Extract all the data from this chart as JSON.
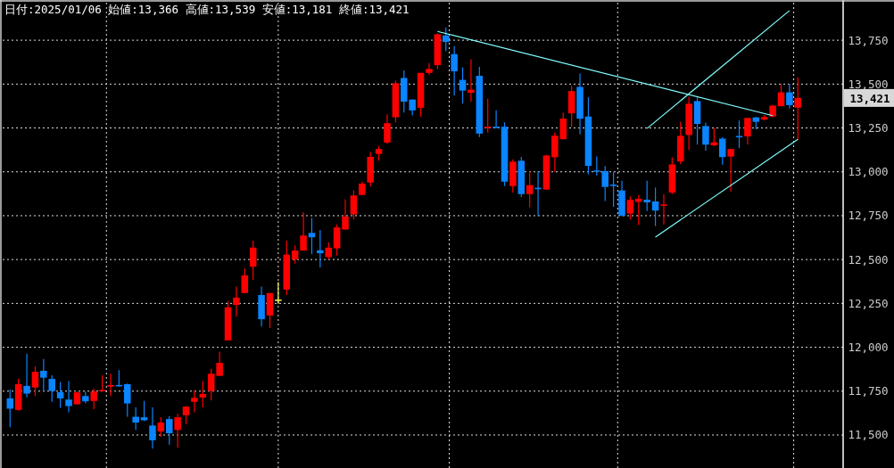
{
  "chart_data": {
    "type": "candlestick",
    "title": "日付:2025/01/06 始値:13,366 高値:13,539 安値:13,181 終値:13,421",
    "categories": [
      null,
      null,
      null,
      null,
      null,
      null,
      null,
      null,
      null,
      null,
      null,
      null,
      null,
      null,
      null,
      null,
      null,
      null,
      null,
      null,
      null,
      null,
      null,
      null,
      null,
      null,
      null,
      null,
      null,
      null,
      null,
      null,
      null,
      null,
      null,
      null,
      null,
      null,
      null,
      null,
      null,
      null,
      null,
      null,
      null,
      null,
      null,
      null,
      null,
      null,
      null,
      null,
      null,
      null,
      null,
      null,
      null,
      null,
      null,
      null,
      null,
      null,
      null,
      null,
      null,
      null,
      null,
      null,
      null,
      null,
      null,
      null,
      null,
      null,
      null,
      null,
      null,
      null,
      null,
      null,
      null,
      null,
      null,
      null,
      null,
      null,
      null,
      null,
      null,
      null,
      null,
      null,
      null,
      null,
      null
    ],
    "ohlc": [
      [
        11709,
        11759,
        11545,
        11650
      ],
      [
        11643,
        11820,
        11638,
        11790
      ],
      [
        11780,
        11963,
        11714,
        11736
      ],
      [
        11771,
        11891,
        11722,
        11860
      ],
      [
        11866,
        11933,
        11748,
        11827
      ],
      [
        11820,
        11840,
        11689,
        11751
      ],
      [
        11744,
        11802,
        11655,
        11709
      ],
      [
        11702,
        11807,
        11630,
        11665
      ],
      [
        11675,
        11748,
        11675,
        11743
      ],
      [
        11722,
        11748,
        11680,
        11692
      ],
      [
        11694,
        11765,
        11647,
        11748
      ],
      [
        11754,
        11840,
        11754,
        11757
      ],
      [
        11776,
        11849,
        11722,
        11785
      ],
      [
        11785,
        11869,
        11776,
        11778
      ],
      [
        11790,
        11793,
        11604,
        11680
      ],
      [
        11604,
        11658,
        11529,
        11571
      ],
      [
        11601,
        11694,
        11579,
        11584
      ],
      [
        11554,
        11658,
        11422,
        11470
      ],
      [
        11520,
        11601,
        11490,
        11571
      ],
      [
        11591,
        11608,
        11444,
        11510
      ],
      [
        11529,
        11621,
        11428,
        11601
      ],
      [
        11613,
        11665,
        11562,
        11662
      ],
      [
        11689,
        11753,
        11630,
        11712
      ],
      [
        11714,
        11807,
        11658,
        11734
      ],
      [
        11751,
        11877,
        11697,
        11849
      ],
      [
        11837,
        11975,
        11837,
        11911
      ],
      [
        12039,
        12265,
        12039,
        12228
      ],
      [
        12241,
        12346,
        12174,
        12283
      ],
      [
        12309,
        12450,
        12309,
        12410
      ],
      [
        12459,
        12607,
        12383,
        12568
      ],
      [
        12298,
        12346,
        12118,
        12160
      ],
      [
        12181,
        12309,
        12110,
        12309
      ],
      [
        12272,
        12371,
        12248,
        12272
      ],
      [
        12329,
        12607,
        12298,
        12528
      ],
      [
        12500,
        12581,
        12477,
        12551
      ],
      [
        12551,
        12770,
        12551,
        12637
      ],
      [
        12652,
        12737,
        12531,
        12627
      ],
      [
        12553,
        12669,
        12455,
        12536
      ],
      [
        12514,
        12598,
        12500,
        12568
      ],
      [
        12564,
        12700,
        12522,
        12683
      ],
      [
        12671,
        12843,
        12671,
        12745
      ],
      [
        12757,
        12894,
        12728,
        12865
      ],
      [
        12868,
        12945,
        12868,
        12933
      ],
      [
        12939,
        13113,
        12916,
        13085
      ],
      [
        13102,
        13147,
        13063,
        13130
      ],
      [
        13167,
        13328,
        13159,
        13277
      ],
      [
        13311,
        13519,
        13282,
        13505
      ],
      [
        13535,
        13578,
        13338,
        13400
      ],
      [
        13412,
        13412,
        13321,
        13350
      ],
      [
        13365,
        13564,
        13314,
        13564
      ],
      [
        13564,
        13620,
        13552,
        13586
      ],
      [
        13608,
        13789,
        13586,
        13784
      ],
      [
        13777,
        13823,
        13688,
        13740
      ],
      [
        13671,
        13716,
        13434,
        13573
      ],
      [
        13524,
        13595,
        13389,
        13463
      ],
      [
        13451,
        13642,
        13400,
        13468
      ],
      [
        13547,
        13598,
        13198,
        13218
      ],
      [
        13252,
        13417,
        13223,
        13257
      ],
      [
        13257,
        13350,
        13252,
        13253
      ],
      [
        13257,
        13282,
        12919,
        12944
      ],
      [
        12919,
        13071,
        12882,
        13058
      ],
      [
        13063,
        13085,
        12857,
        12873
      ],
      [
        12873,
        13004,
        12798,
        12924
      ],
      [
        12909,
        13004,
        12750,
        12906
      ],
      [
        12899,
        13097,
        12899,
        13093
      ],
      [
        13083,
        13223,
        12999,
        13206
      ],
      [
        13186,
        13338,
        13186,
        13303
      ],
      [
        13333,
        13490,
        13257,
        13460
      ],
      [
        13484,
        13560,
        13214,
        13303
      ],
      [
        13315,
        13425,
        12986,
        13034
      ],
      [
        13008,
        13087,
        12978,
        13006
      ],
      [
        13004,
        13033,
        12834,
        12914
      ],
      [
        12927,
        13000,
        12801,
        12922
      ],
      [
        12894,
        12949,
        12747,
        12750
      ],
      [
        12762,
        12860,
        12728,
        12840
      ],
      [
        12829,
        12868,
        12696,
        12846
      ],
      [
        12841,
        12949,
        12776,
        12826
      ],
      [
        12831,
        12910,
        12691,
        12779
      ],
      [
        12808,
        12872,
        12700,
        12814
      ],
      [
        12882,
        13082,
        12873,
        13042
      ],
      [
        13059,
        13286,
        13045,
        13205
      ],
      [
        13210,
        13428,
        13124,
        13388
      ],
      [
        13403,
        13428,
        13155,
        13273
      ],
      [
        13261,
        13281,
        13121,
        13155
      ],
      [
        13151,
        13251,
        13146,
        13168
      ],
      [
        13189,
        13197,
        13040,
        13084
      ],
      [
        13087,
        13130,
        12887,
        13130
      ],
      [
        13204,
        13293,
        13135,
        13202
      ],
      [
        13202,
        13307,
        13155,
        13307
      ],
      [
        13310,
        13312,
        13243,
        13285
      ],
      [
        13298,
        13323,
        13293,
        13312
      ],
      [
        13315,
        13382,
        13310,
        13377
      ],
      [
        13374,
        13500,
        13374,
        13453
      ],
      [
        13453,
        13500,
        13361,
        13380
      ],
      [
        13366,
        13539,
        13181,
        13421
      ]
    ],
    "colors": [
      "#0a84ff",
      "#ff0000",
      "#0a84ff",
      "#ff0000",
      "#0a84ff",
      "#0a84ff",
      "#0a84ff",
      "#0a84ff",
      "#ff0000",
      "#0a84ff",
      "#ff0000",
      "#ff0000",
      "#ff0000",
      "#0a84ff",
      "#0a84ff",
      "#0a84ff",
      "#0a84ff",
      "#0a84ff",
      "#ff0000",
      "#0a84ff",
      "#ff0000",
      "#ff0000",
      "#ff0000",
      "#ff0000",
      "#ff0000",
      "#ff0000",
      "#ff0000",
      "#ff0000",
      "#ff0000",
      "#ff0000",
      "#0a84ff",
      "#ff0000",
      "#ffff66",
      "#ff0000",
      "#ff0000",
      "#ff0000",
      "#0a84ff",
      "#0a84ff",
      "#ff0000",
      "#ff0000",
      "#ff0000",
      "#ff0000",
      "#ff0000",
      "#ff0000",
      "#ff0000",
      "#ff0000",
      "#ff0000",
      "#0a84ff",
      "#0a84ff",
      "#ff0000",
      "#ff0000",
      "#ff0000",
      "#0a84ff",
      "#0a84ff",
      "#0a84ff",
      "#ff0000",
      "#0a84ff",
      "#ff0000",
      "#0a84ff",
      "#0a84ff",
      "#ff0000",
      "#0a84ff",
      "#ff0000",
      "#0a84ff",
      "#ff0000",
      "#ff0000",
      "#ff0000",
      "#ff0000",
      "#0a84ff",
      "#0a84ff",
      "#0a84ff",
      "#0a84ff",
      "#0a84ff",
      "#0a84ff",
      "#ff0000",
      "#ff0000",
      "#0a84ff",
      "#0a84ff",
      "#ff0000",
      "#ff0000",
      "#ff0000",
      "#ff0000",
      "#0a84ff",
      "#0a84ff",
      "#ff0000",
      "#0a84ff",
      "#ff0000",
      "#0a84ff",
      "#ff0000",
      "#0a84ff",
      "#ff0000",
      "#ff0000",
      "#ff0000",
      "#0a84ff",
      "#ff0000"
    ],
    "series": [
      {
        "type": "line",
        "color": "#80ffff",
        "values": [
          null,
          null,
          null,
          null,
          null,
          null,
          null,
          null,
          null,
          null,
          null,
          null,
          null,
          null,
          null,
          null,
          null,
          null,
          null,
          null,
          null,
          null,
          null,
          null,
          null,
          null,
          null,
          null,
          null,
          null,
          null,
          null,
          null,
          null,
          null,
          null,
          null,
          null,
          null,
          null,
          null,
          null,
          null,
          null,
          null,
          null,
          null,
          null,
          null,
          null,
          null,
          13800,
          null,
          null,
          null,
          null,
          null,
          null,
          null,
          null,
          null,
          null,
          null,
          null,
          null,
          null,
          null,
          null,
          null,
          null,
          null,
          null,
          null,
          null,
          null,
          null,
          null,
          null,
          null,
          null,
          null,
          null,
          null,
          null,
          null,
          null,
          null,
          null,
          null,
          null,
          null,
          13320,
          null,
          null,
          null
        ]
      },
      {
        "type": "line",
        "color": "#80ffff",
        "values": [
          null,
          null,
          null,
          null,
          null,
          null,
          null,
          null,
          null,
          null,
          null,
          null,
          null,
          null,
          null,
          null,
          null,
          null,
          null,
          null,
          null,
          null,
          null,
          null,
          null,
          null,
          null,
          null,
          null,
          null,
          null,
          null,
          null,
          null,
          null,
          null,
          null,
          null,
          null,
          null,
          null,
          null,
          null,
          null,
          null,
          null,
          null,
          null,
          null,
          null,
          null,
          null,
          null,
          null,
          null,
          null,
          null,
          null,
          null,
          null,
          null,
          null,
          null,
          null,
          null,
          null,
          null,
          null,
          null,
          null,
          null,
          null,
          null,
          null,
          null,
          null,
          13247,
          null,
          null,
          null,
          null,
          null,
          null,
          null,
          null,
          null,
          null,
          null,
          null,
          null,
          null,
          null,
          null,
          13919,
          null
        ]
      },
      {
        "type": "line",
        "color": "#80ffff",
        "values": [
          null,
          null,
          null,
          null,
          null,
          null,
          null,
          null,
          null,
          null,
          null,
          null,
          null,
          null,
          null,
          null,
          null,
          null,
          null,
          null,
          null,
          null,
          null,
          null,
          null,
          null,
          null,
          null,
          null,
          null,
          null,
          null,
          null,
          null,
          null,
          null,
          null,
          null,
          null,
          null,
          null,
          null,
          null,
          null,
          null,
          null,
          null,
          null,
          null,
          null,
          null,
          null,
          null,
          null,
          null,
          null,
          null,
          null,
          null,
          null,
          null,
          null,
          null,
          null,
          null,
          null,
          null,
          null,
          null,
          null,
          null,
          null,
          null,
          null,
          null,
          null,
          null,
          12628,
          null,
          null,
          null,
          null,
          null,
          null,
          null,
          null,
          null,
          null,
          null,
          null,
          null,
          null,
          null,
          null,
          13186
        ]
      }
    ],
    "ylim": [
      11312,
      13964
    ],
    "yticks": [
      {
        "value": 11500,
        "label": "11,500"
      },
      {
        "value": 11750,
        "label": "11,750"
      },
      {
        "value": 12000,
        "label": "12,000"
      },
      {
        "value": 12250,
        "label": "12,250"
      },
      {
        "value": 12500,
        "label": "12,500"
      },
      {
        "value": 12750,
        "label": "12,750"
      },
      {
        "value": 13000,
        "label": "13,000"
      },
      {
        "value": 13250,
        "label": "13,250"
      },
      {
        "value": 13500,
        "label": "13,500"
      },
      {
        "value": 13750,
        "label": "13,750"
      }
    ],
    "annotations": [
      "13,421"
    ],
    "grid": true
  }
}
